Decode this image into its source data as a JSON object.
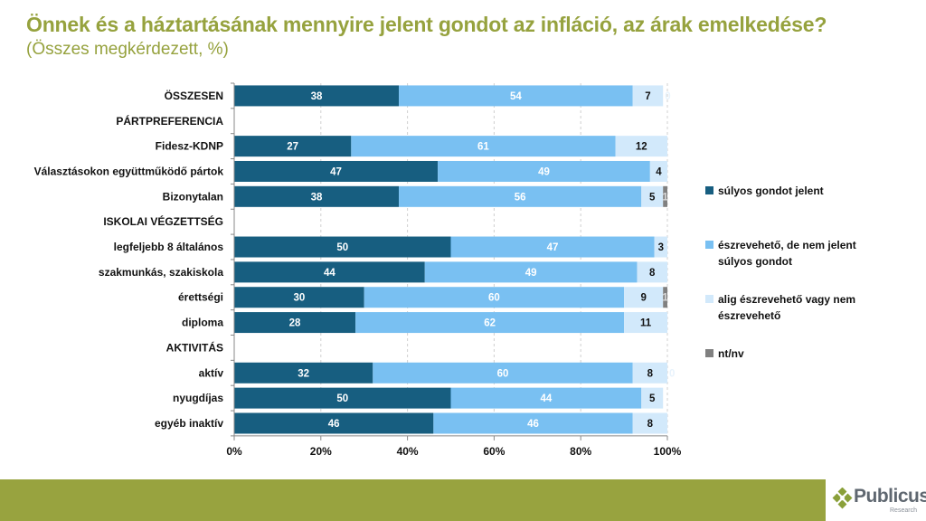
{
  "header": {
    "title": "Önnek és a háztartásának mennyire jelent gondot az infláció, az árak emelkedése?",
    "subtitle": "(Összes megkérdezett, %)"
  },
  "chart_data": {
    "type": "bar",
    "orientation": "horizontal",
    "stacked": "percent",
    "title": "Önnek és a háztartásának mennyire jelent gondot az infláció, az árak emelkedése?",
    "subtitle": "(Összes megkérdezett, %)",
    "xlabel": "",
    "ylabel": "",
    "xlim": [
      0,
      100
    ],
    "x_ticks": [
      "0%",
      "20%",
      "40%",
      "60%",
      "80%",
      "100%"
    ],
    "grid": "vertical dashed",
    "legend_position": "right",
    "categories": [
      "ÖSSZESEN",
      "PÁRTPREFERENCIA",
      "Fidesz-KDNP",
      "Választásokon együttműködő pártok",
      "Bizonytalan",
      "ISKOLAI VÉGZETTSÉG",
      "legfeljebb 8 általános",
      "szakmunkás, szakiskola",
      "érettségi",
      "diploma",
      "AKTIVITÁS",
      "aktív",
      "nyugdíjas",
      "egyéb inaktív"
    ],
    "series": [
      {
        "name": "súlyos gondot jelent",
        "color": "#175e80",
        "label_color": "#ffffff",
        "values": [
          38,
          null,
          27,
          47,
          38,
          null,
          50,
          44,
          30,
          28,
          null,
          32,
          50,
          46
        ]
      },
      {
        "name": "észrevehető, de nem jelent súlyos gondot",
        "color": "#79c0f2",
        "label_color": "#ffffff",
        "values": [
          54,
          null,
          61,
          49,
          56,
          null,
          47,
          49,
          60,
          62,
          null,
          60,
          44,
          46
        ]
      },
      {
        "name": "alig észrevehető vagy nem észrevehető",
        "color": "#d2e9fb",
        "label_color": "#111111",
        "values": [
          7,
          null,
          12,
          4,
          5,
          null,
          3,
          8,
          9,
          11,
          null,
          8,
          5,
          8
        ]
      },
      {
        "name": "nt/nv",
        "color": "#808080",
        "label_color": "#ffffff",
        "values": [
          0,
          null,
          0,
          0,
          1,
          null,
          0,
          0,
          1,
          0,
          null,
          0,
          0,
          0
        ]
      }
    ]
  },
  "legend": [
    {
      "label_line1": "súlyos gondot jelent",
      "label_line2": "",
      "color": "#175e80"
    },
    {
      "label_line1": "észrevehető, de nem jelent",
      "label_line2": "súlyos gondot",
      "color": "#79c0f2"
    },
    {
      "label_line1": "alig észrevehető vagy nem",
      "label_line2": "észrevehető",
      "color": "#d2e9fb"
    },
    {
      "label_line1": "nt/nv",
      "label_line2": "",
      "color": "#808080"
    }
  ],
  "footer": {
    "brand": "Publicus",
    "brand_sub": "Research",
    "bar_color": "#98a33f"
  }
}
